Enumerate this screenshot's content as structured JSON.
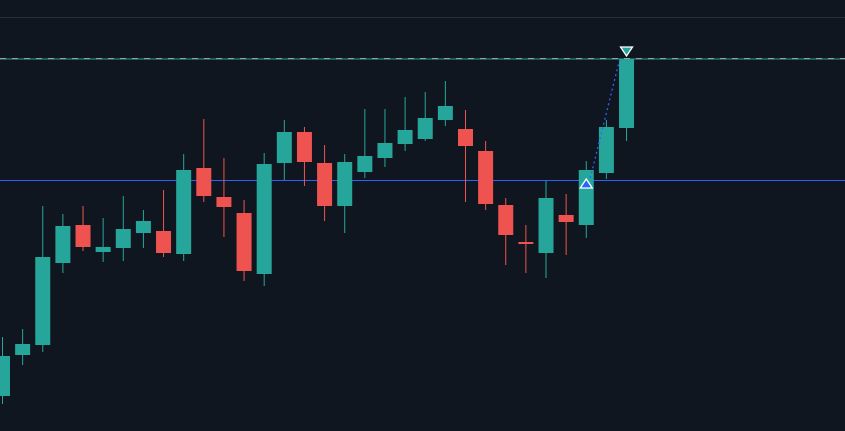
{
  "chart_data": {
    "type": "candlestick",
    "title": "",
    "xlabel": "",
    "ylabel": "",
    "ylim": [
      0,
      431
    ],
    "grid": false,
    "colors": {
      "background": "#10161f",
      "up": "#26a69a",
      "down": "#ef5350",
      "level_line": "#2962ff",
      "dashed_line": "#9aa0a6",
      "border": "#2a2e39"
    },
    "candles": [
      {
        "o": 35,
        "h": 94,
        "l": 27,
        "c": 75
      },
      {
        "o": 76,
        "h": 102,
        "l": 66,
        "c": 87
      },
      {
        "o": 86,
        "h": 225,
        "l": 79,
        "c": 174
      },
      {
        "o": 168,
        "h": 217,
        "l": 158,
        "c": 205
      },
      {
        "o": 206,
        "h": 225,
        "l": 180,
        "c": 184
      },
      {
        "o": 179,
        "h": 213,
        "l": 169,
        "c": 184
      },
      {
        "o": 183,
        "h": 235,
        "l": 170,
        "c": 202
      },
      {
        "o": 198,
        "h": 221,
        "l": 183,
        "c": 210
      },
      {
        "o": 200,
        "h": 241,
        "l": 174,
        "c": 178
      },
      {
        "o": 177,
        "h": 277,
        "l": 170,
        "c": 261
      },
      {
        "o": 263,
        "h": 312,
        "l": 229,
        "c": 235
      },
      {
        "o": 234,
        "h": 273,
        "l": 194,
        "c": 224
      },
      {
        "o": 218,
        "h": 231,
        "l": 150,
        "c": 160
      },
      {
        "o": 157,
        "h": 278,
        "l": 145,
        "c": 267
      },
      {
        "o": 268,
        "h": 311,
        "l": 251,
        "c": 299
      },
      {
        "o": 299,
        "h": 304,
        "l": 245,
        "c": 269
      },
      {
        "o": 268,
        "h": 286,
        "l": 210,
        "c": 225
      },
      {
        "o": 225,
        "h": 277,
        "l": 198,
        "c": 269
      },
      {
        "o": 259,
        "h": 322,
        "l": 253,
        "c": 275
      },
      {
        "o": 273,
        "h": 322,
        "l": 264,
        "c": 288
      },
      {
        "o": 287,
        "h": 334,
        "l": 280,
        "c": 301
      },
      {
        "o": 292,
        "h": 339,
        "l": 290,
        "c": 313
      },
      {
        "o": 311,
        "h": 350,
        "l": 305,
        "c": 325
      },
      {
        "o": 302,
        "h": 321,
        "l": 229,
        "c": 285
      },
      {
        "o": 280,
        "h": 290,
        "l": 221,
        "c": 227
      },
      {
        "o": 226,
        "h": 233,
        "l": 166,
        "c": 196
      },
      {
        "o": 189,
        "h": 206,
        "l": 158,
        "c": 188
      },
      {
        "o": 178,
        "h": 250,
        "l": 153,
        "c": 233
      },
      {
        "o": 216,
        "h": 237,
        "l": 176,
        "c": 209
      },
      {
        "o": 206,
        "h": 270,
        "l": 193,
        "c": 261
      },
      {
        "o": 258,
        "h": 311,
        "l": 252,
        "c": 304
      },
      {
        "o": 303,
        "h": 372,
        "l": 290,
        "c": 372
      }
    ],
    "horizontal_lines": [
      {
        "price": 250.5,
        "style": "solid",
        "color": "#2962ff"
      },
      {
        "price": 372.5,
        "style": "dashed",
        "color": "#9aa0a6"
      }
    ],
    "markers": [
      {
        "candle": 29,
        "shape": "triangle-up",
        "color": "#2962ff",
        "price": 247
      },
      {
        "candle": 31,
        "shape": "triangle-down",
        "color": "#26a69a",
        "price": 380
      }
    ],
    "trend_line": {
      "from_candle": 29,
      "from_price": 253,
      "to_candle": 31,
      "to_price": 371,
      "style": "dotted",
      "color": "#2962ff"
    }
  }
}
